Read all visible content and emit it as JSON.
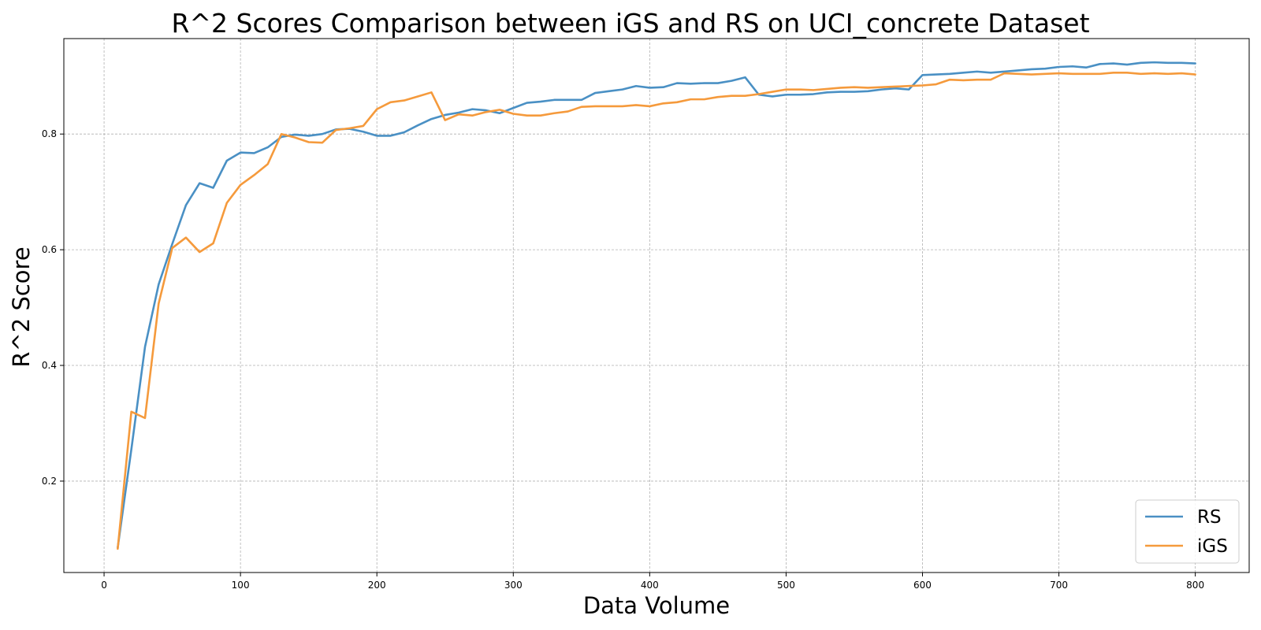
{
  "chart_data": {
    "type": "line",
    "title": "R^2 Scores Comparison between iGS and RS on UCI_concrete Dataset",
    "xlabel": "Data Volume",
    "ylabel": "R^2 Score",
    "xlim": [
      -29.5,
      839.5
    ],
    "ylim": [
      0.042,
      0.965
    ],
    "xticks": [
      0,
      100,
      200,
      300,
      400,
      500,
      600,
      700,
      800
    ],
    "yticks": [
      0.2,
      0.4,
      0.6,
      0.8
    ],
    "xtick_labels": [
      "0",
      "100",
      "200",
      "300",
      "400",
      "500",
      "600",
      "700",
      "800"
    ],
    "ytick_labels": [
      "0.2",
      "0.4",
      "0.6",
      "0.8"
    ],
    "grid": true,
    "legend_position": "lower-right",
    "x": [
      10,
      20,
      30,
      40,
      50,
      60,
      70,
      80,
      90,
      100,
      110,
      120,
      130,
      140,
      150,
      160,
      170,
      180,
      190,
      200,
      210,
      220,
      230,
      240,
      250,
      260,
      270,
      280,
      290,
      300,
      310,
      320,
      330,
      340,
      350,
      360,
      370,
      380,
      390,
      400,
      410,
      420,
      430,
      440,
      450,
      460,
      470,
      480,
      490,
      500,
      510,
      520,
      530,
      540,
      550,
      560,
      570,
      580,
      590,
      600,
      610,
      620,
      630,
      640,
      650,
      660,
      670,
      680,
      690,
      700,
      710,
      720,
      730,
      740,
      750,
      760,
      770,
      780,
      790,
      800
    ],
    "series": [
      {
        "name": "RS",
        "color": "#4a90c4",
        "values": [
          0.085,
          0.255,
          0.432,
          0.54,
          0.61,
          0.677,
          0.715,
          0.707,
          0.754,
          0.768,
          0.767,
          0.777,
          0.795,
          0.799,
          0.797,
          0.8,
          0.808,
          0.809,
          0.804,
          0.797,
          0.797,
          0.803,
          0.815,
          0.826,
          0.833,
          0.837,
          0.843,
          0.841,
          0.836,
          0.845,
          0.854,
          0.856,
          0.859,
          0.859,
          0.859,
          0.871,
          0.874,
          0.877,
          0.883,
          0.88,
          0.881,
          0.888,
          0.887,
          0.888,
          0.888,
          0.892,
          0.898,
          0.868,
          0.865,
          0.868,
          0.868,
          0.869,
          0.872,
          0.873,
          0.873,
          0.874,
          0.877,
          0.879,
          0.877,
          0.902,
          0.903,
          0.904,
          0.906,
          0.908,
          0.906,
          0.908,
          0.91,
          0.912,
          0.913,
          0.916,
          0.917,
          0.915,
          0.921,
          0.922,
          0.92,
          0.923,
          0.924,
          0.923,
          0.923,
          0.922
        ]
      },
      {
        "name": "iGS",
        "color": "#f59a3c",
        "values": [
          0.083,
          0.32,
          0.309,
          0.507,
          0.603,
          0.621,
          0.596,
          0.611,
          0.681,
          0.712,
          0.729,
          0.748,
          0.8,
          0.794,
          0.786,
          0.785,
          0.807,
          0.81,
          0.814,
          0.843,
          0.855,
          0.858,
          0.865,
          0.872,
          0.824,
          0.834,
          0.832,
          0.838,
          0.842,
          0.835,
          0.832,
          0.832,
          0.836,
          0.839,
          0.847,
          0.848,
          0.848,
          0.848,
          0.85,
          0.848,
          0.853,
          0.855,
          0.86,
          0.86,
          0.864,
          0.866,
          0.866,
          0.869,
          0.873,
          0.877,
          0.877,
          0.876,
          0.878,
          0.88,
          0.881,
          0.88,
          0.881,
          0.882,
          0.883,
          0.884,
          0.886,
          0.894,
          0.893,
          0.894,
          0.894,
          0.905,
          0.904,
          0.903,
          0.904,
          0.905,
          0.904,
          0.904,
          0.904,
          0.906,
          0.906,
          0.904,
          0.905,
          0.904,
          0.905,
          0.903
        ]
      }
    ]
  }
}
